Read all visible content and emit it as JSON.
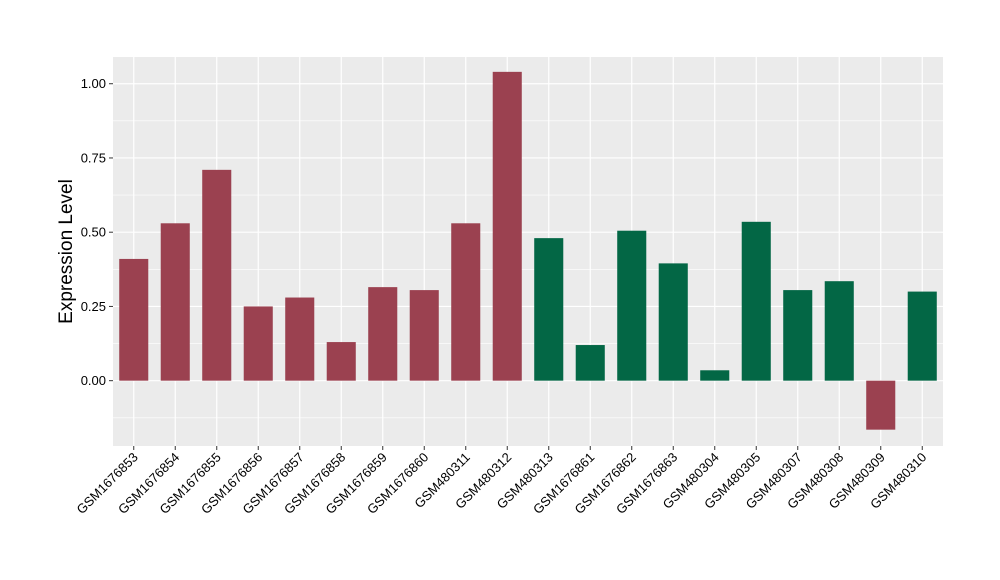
{
  "chart_data": {
    "type": "bar",
    "title": "",
    "xlabel": "",
    "ylabel": "Expression Level",
    "ylim": [
      -0.22,
      1.09
    ],
    "yticks": [
      0.0,
      0.25,
      0.5,
      0.75,
      1.0
    ],
    "ytick_labels": [
      "0.00",
      "0.25",
      "0.50",
      "0.75",
      "1.00"
    ],
    "grid": true,
    "categories": [
      "GSM1676853",
      "GSM1676854",
      "GSM1676855",
      "GSM1676856",
      "GSM1676857",
      "GSM1676858",
      "GSM1676859",
      "GSM1676860",
      "GSM480311",
      "GSM480312",
      "GSM480313",
      "GSM1676861",
      "GSM1676862",
      "GSM1676863",
      "GSM480304",
      "GSM480305",
      "GSM480307",
      "GSM480308",
      "GSM480309",
      "GSM480310"
    ],
    "values": [
      0.41,
      0.53,
      0.71,
      0.25,
      0.28,
      0.13,
      0.315,
      0.305,
      0.53,
      1.04,
      0.48,
      0.12,
      0.505,
      0.395,
      0.035,
      0.535,
      0.305,
      0.335,
      -0.165,
      0.3
    ],
    "bar_colors": [
      "#9b4150",
      "#9b4150",
      "#9b4150",
      "#9b4150",
      "#9b4150",
      "#9b4150",
      "#9b4150",
      "#9b4150",
      "#9b4150",
      "#9b4150",
      "#036745",
      "#036745",
      "#036745",
      "#036745",
      "#036745",
      "#036745",
      "#036745",
      "#036745",
      "#9b4150",
      "#036745"
    ],
    "panel_background": "#ebebeb",
    "grid_color": "#ffffff"
  }
}
